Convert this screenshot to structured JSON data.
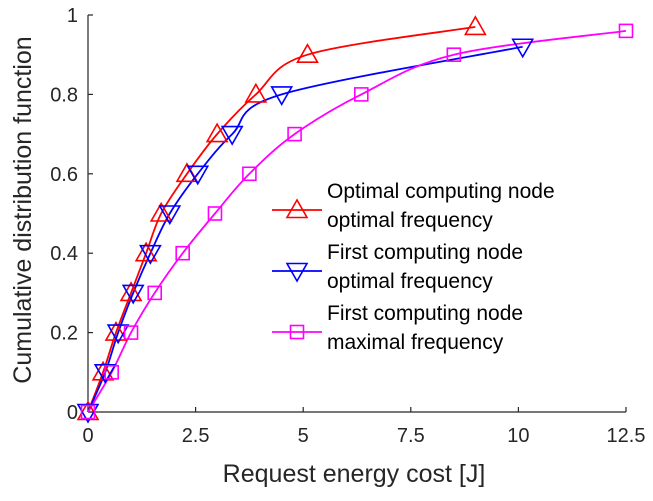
{
  "chart_data": {
    "type": "line",
    "xlabel": "Request energy cost [J]",
    "ylabel": "Cumulative distribution function",
    "xlim": [
      0,
      12.5
    ],
    "ylim": [
      0,
      1
    ],
    "x_ticks": [
      "0",
      "2.5",
      "5",
      "7.5",
      "10",
      "12.5"
    ],
    "y_ticks": [
      "0",
      "0.2",
      "0.4",
      "0.6",
      "0.8",
      "1"
    ],
    "grid": false,
    "legend_position": "center-right",
    "series": [
      {
        "name_lines": [
          "Optimal computing node",
          "optimal frequency"
        ],
        "color": "#ff0000",
        "marker": "triangle-up",
        "points": [
          [
            0,
            0
          ],
          [
            0.35,
            0.1
          ],
          [
            0.65,
            0.2
          ],
          [
            1.0,
            0.3
          ],
          [
            1.35,
            0.4
          ],
          [
            1.7,
            0.5
          ],
          [
            2.3,
            0.6
          ],
          [
            3.0,
            0.7
          ],
          [
            3.9,
            0.8
          ],
          [
            5.1,
            0.9
          ],
          [
            9.0,
            0.97
          ]
        ]
      },
      {
        "name_lines": [
          "First computing node",
          "optimal frequency"
        ],
        "color": "#0000ff",
        "marker": "triangle-down",
        "points": [
          [
            0,
            0
          ],
          [
            0.4,
            0.1
          ],
          [
            0.7,
            0.2
          ],
          [
            1.05,
            0.3
          ],
          [
            1.45,
            0.4
          ],
          [
            1.9,
            0.5
          ],
          [
            2.55,
            0.6
          ],
          [
            3.35,
            0.7
          ],
          [
            4.5,
            0.8
          ],
          [
            10.1,
            0.92
          ]
        ]
      },
      {
        "name_lines": [
          "First computing node",
          "maximal frequency"
        ],
        "color": "#ff00ff",
        "marker": "square",
        "points": [
          [
            0,
            0
          ],
          [
            0.55,
            0.1
          ],
          [
            1.0,
            0.2
          ],
          [
            1.55,
            0.3
          ],
          [
            2.2,
            0.4
          ],
          [
            2.95,
            0.5
          ],
          [
            3.75,
            0.6
          ],
          [
            4.8,
            0.7
          ],
          [
            6.35,
            0.8
          ],
          [
            8.5,
            0.9
          ],
          [
            12.5,
            0.96
          ]
        ]
      }
    ]
  }
}
